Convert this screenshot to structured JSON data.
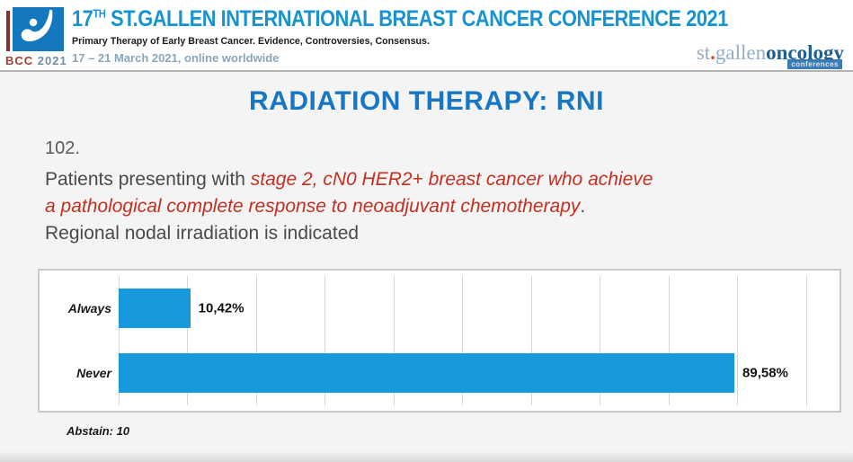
{
  "header": {
    "logo_badge": {
      "bcc": "BCC",
      "year": "2021"
    },
    "title": {
      "num": "17",
      "sup": "TH",
      "rest": " ST.GALLEN INTERNATIONAL BREAST CANCER CONFERENCE 2021"
    },
    "subtitle": "Primary Therapy of Early Breast Cancer. Evidence, Controversies, Consensus.",
    "dates": "17 – 21 March 2021, online worldwide",
    "brand": {
      "st": "st",
      "dot": ".",
      "gallen": "gallen",
      "oncology": "oncology",
      "badge": "conferences"
    }
  },
  "slide": {
    "title": "RADIATION THERAPY: RNI",
    "question_number": "102.",
    "question_intro": "Patients presenting with ",
    "question_red_line1": "stage 2, cN0 HER2+ breast cancer who achieve",
    "question_red_line2": "a pathological complete response to neoadjuvant chemotherapy",
    "question_period": ".",
    "question_line3": "Regional nodal irradiation is indicated",
    "abstain_note": "Abstain: 10"
  },
  "chart_data": {
    "type": "bar",
    "orientation": "horizontal",
    "categories": [
      "Always",
      "Never"
    ],
    "values": [
      10.42,
      89.58
    ],
    "value_labels": [
      "10,42%",
      "89,58%"
    ],
    "xlim": [
      0,
      102
    ],
    "gridline_interval": 10,
    "grid": true,
    "bar_color": "#1899dd",
    "title": "",
    "annotation": "Abstain: 10"
  },
  "colors": {
    "header_title_blue": "#1793d1",
    "slide_title_blue": "#1877c5",
    "question_gray": "#4a4a4a",
    "highlight_red": "#c32f20",
    "bar_blue": "#1899dd",
    "brand_light_blue": "#93adc4",
    "brand_dark_blue": "#1f5f94",
    "bcc_red": "#a63d33"
  }
}
